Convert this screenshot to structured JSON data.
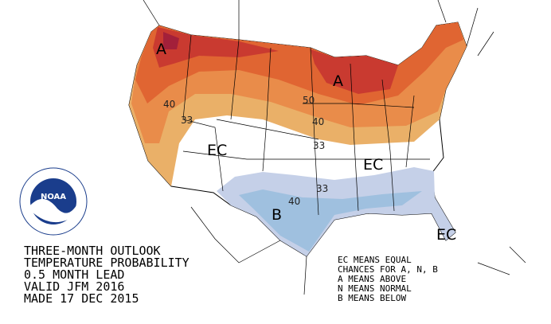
{
  "title": [
    "THREE-MONTH OUTLOOK",
    "TEMPERATURE PROBABILITY",
    "0.5 MONTH LEAD",
    "VALID JFM 2016",
    "MADE 17 DEC 2015"
  ],
  "legend": [
    "EC MEANS EQUAL",
    "CHANCES FOR A, N, B",
    "A MEANS ABOVE",
    "N MEANS NORMAL",
    "B MEANS BELOW"
  ],
  "logo": {
    "name": "NOAA"
  },
  "map": {
    "contour_labels": [
      "40",
      "33",
      "50",
      "40",
      "33",
      "33",
      "40"
    ],
    "category_labels": [
      "A",
      "A",
      "EC",
      "EC",
      "B",
      "EC"
    ]
  }
}
